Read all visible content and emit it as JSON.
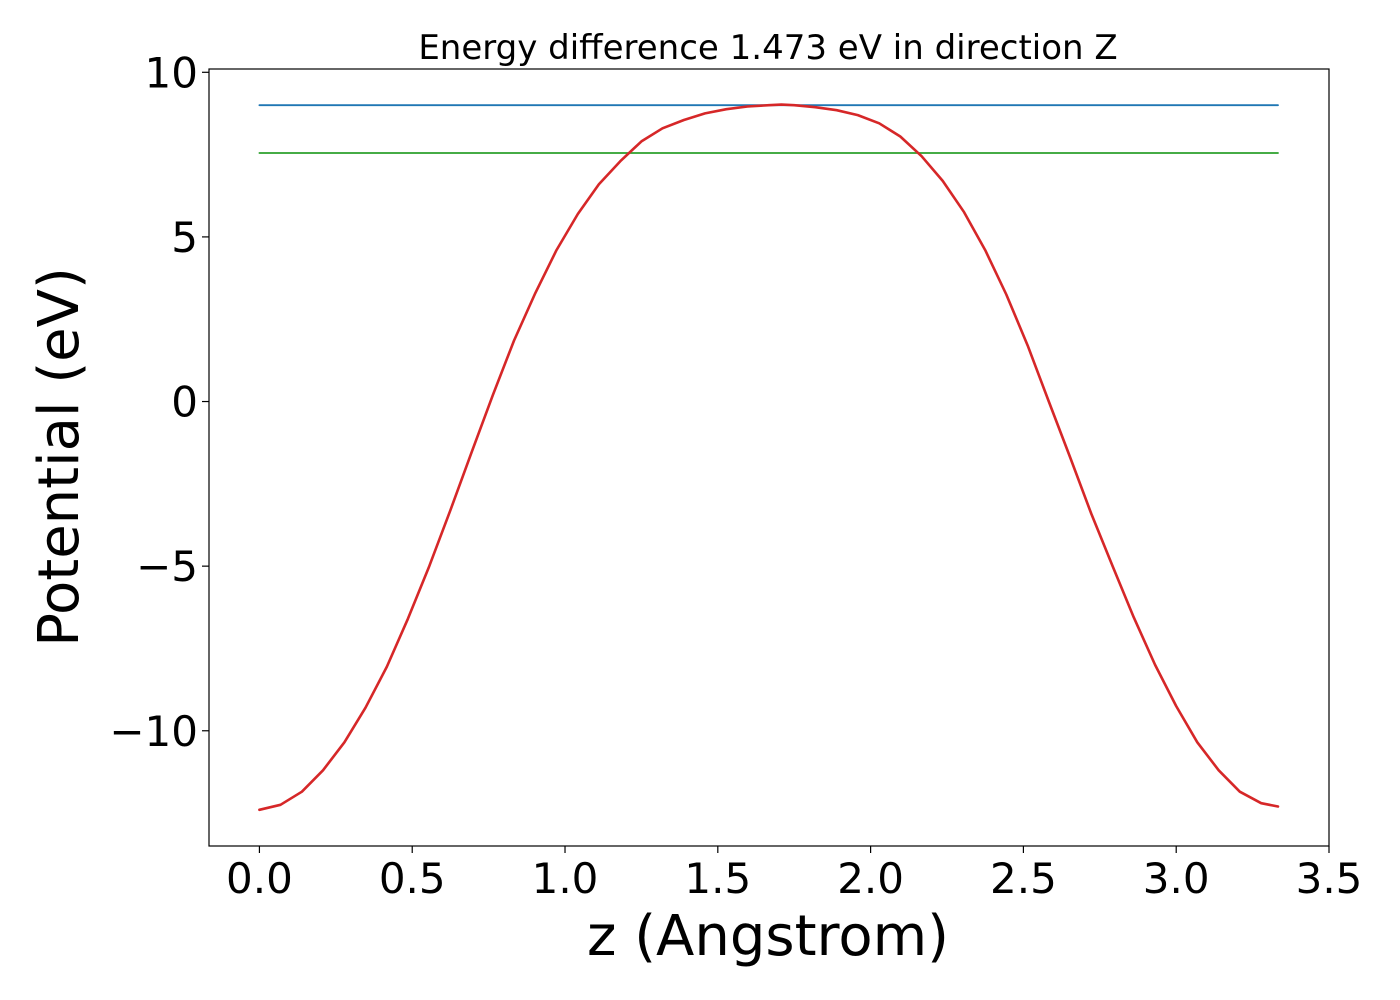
{
  "chart_data": {
    "type": "line",
    "title": "Energy difference 1.473 eV in direction Z",
    "xlabel": "z (Angstrom)",
    "ylabel": "Potential (eV)",
    "xlim": [
      -0.165,
      3.5
    ],
    "ylim": [
      -13.5,
      10.1
    ],
    "xticks": [
      0.0,
      0.5,
      1.0,
      1.5,
      2.0,
      2.5,
      3.0,
      3.5
    ],
    "xtick_labels": [
      "0.0",
      "0.5",
      "1.0",
      "1.5",
      "2.0",
      "2.5",
      "3.0",
      "3.5"
    ],
    "yticks": [
      10,
      5,
      0,
      -5,
      -10
    ],
    "ytick_labels": [
      "10",
      "5",
      "0",
      "−5",
      "−10"
    ],
    "grid": false,
    "series": [
      {
        "color": "#1f77b4",
        "x": [
          0.0,
          3.333
        ],
        "y": [
          9.0,
          9.0
        ]
      },
      {
        "color": "#2ca02c",
        "x": [
          0.0,
          3.333
        ],
        "y": [
          7.55,
          7.55
        ]
      },
      {
        "color": "#d62728",
        "x": [
          0.0,
          0.069,
          0.139,
          0.208,
          0.278,
          0.347,
          0.417,
          0.486,
          0.556,
          0.625,
          0.694,
          0.764,
          0.833,
          0.903,
          0.972,
          1.042,
          1.111,
          1.181,
          1.25,
          1.319,
          1.389,
          1.458,
          1.528,
          1.597,
          1.667,
          1.708,
          1.75,
          1.819,
          1.889,
          1.958,
          2.028,
          2.097,
          2.167,
          2.236,
          2.306,
          2.375,
          2.444,
          2.514,
          2.583,
          2.653,
          2.722,
          2.792,
          2.861,
          2.931,
          3.0,
          3.069,
          3.139,
          3.208,
          3.278,
          3.333
        ],
        "y": [
          -12.4,
          -12.25,
          -11.85,
          -11.2,
          -10.35,
          -9.3,
          -8.05,
          -6.6,
          -5.0,
          -3.3,
          -1.55,
          0.2,
          1.85,
          3.3,
          4.6,
          5.7,
          6.6,
          7.3,
          7.9,
          8.3,
          8.55,
          8.75,
          8.88,
          8.96,
          9.0,
          9.02,
          9.0,
          8.94,
          8.85,
          8.7,
          8.45,
          8.05,
          7.45,
          6.7,
          5.75,
          4.6,
          3.25,
          1.7,
          0.0,
          -1.7,
          -3.4,
          -5.0,
          -6.55,
          -8.0,
          -9.25,
          -10.35,
          -11.2,
          -11.85,
          -12.2,
          -12.3
        ]
      }
    ]
  }
}
